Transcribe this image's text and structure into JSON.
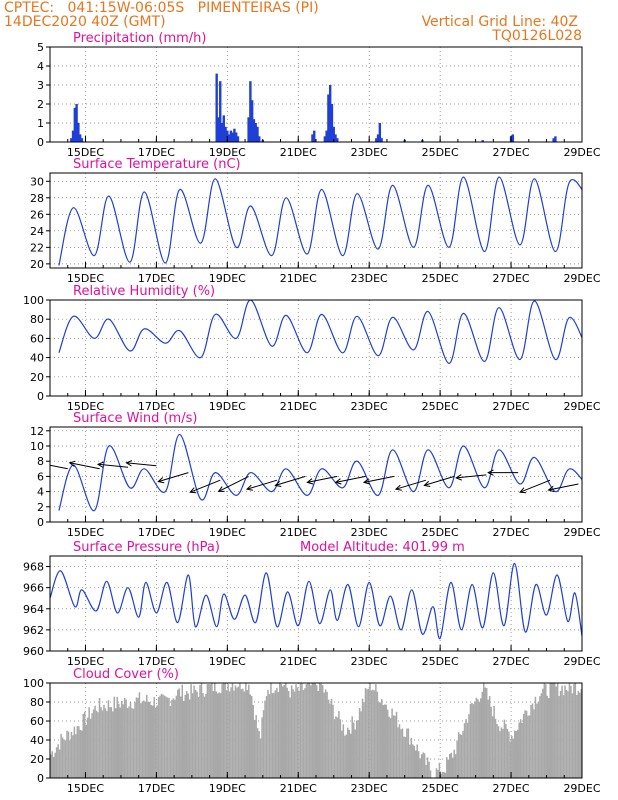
{
  "header": {
    "line1_left": "CPTEC:   041:15W-06:05S   PIMENTEIRAS (PI)",
    "line2_left": "14DEC2020 40Z (GMT)",
    "line1_right": "Vertical Grid Line: 40Z",
    "line2_right": "TQ0126L028"
  },
  "colors": {
    "header": "#e8761e",
    "title": "#e0119b",
    "series": "#1f3fd6",
    "cloud": "#a8a8a8",
    "arrow": "#000000"
  },
  "x_axis": {
    "tick_labels": [
      "15DEC",
      "17DEC",
      "19DEC",
      "21DEC",
      "23DEC",
      "25DEC",
      "27DEC",
      "29DEC"
    ],
    "tick_days": [
      15,
      17,
      19,
      21,
      23,
      25,
      27,
      29
    ],
    "range_days": [
      14,
      29
    ]
  },
  "chart_data": [
    {
      "id": "precip",
      "type": "bar",
      "title": "Precipitation (mm/h)",
      "ylim": [
        0,
        5
      ],
      "yticks": [
        0,
        1,
        2,
        3,
        4,
        5
      ],
      "grid": true,
      "x_day": [
        14.6,
        14.65,
        14.7,
        14.75,
        14.8,
        14.85,
        14.9,
        18.7,
        18.75,
        18.8,
        18.85,
        18.9,
        18.95,
        19.0,
        19.05,
        19.1,
        19.15,
        19.2,
        19.25,
        19.3,
        19.6,
        19.65,
        19.7,
        19.75,
        19.8,
        19.85,
        19.9,
        20.0,
        21.4,
        21.45,
        21.75,
        21.8,
        21.85,
        21.9,
        21.95,
        22.0,
        22.05,
        22.1,
        23.2,
        23.25,
        23.3,
        23.35,
        24.0,
        24.5,
        26.2,
        27.0,
        27.05,
        28.2,
        28.25
      ],
      "values": [
        0.2,
        0.6,
        1.8,
        2.0,
        1.0,
        0.4,
        0.2,
        3.6,
        1.3,
        3.2,
        1.0,
        1.4,
        0.8,
        0.6,
        0.4,
        0.6,
        0.5,
        0.7,
        0.5,
        0.3,
        1.3,
        3.2,
        2.2,
        1.2,
        1.0,
        0.8,
        0.3,
        0.1,
        0.4,
        0.6,
        0.3,
        0.6,
        2.5,
        3.0,
        2.0,
        0.8,
        0.4,
        0.2,
        0.2,
        0.4,
        1.0,
        0.2,
        0.1,
        0.1,
        0.1,
        0.3,
        0.4,
        0.2,
        0.3
      ]
    },
    {
      "id": "temperature",
      "type": "line",
      "title": "Surface Temperature (nC)",
      "ylim": [
        19.5,
        31
      ],
      "yticks": [
        20,
        22,
        24,
        26,
        28,
        30
      ],
      "grid": true,
      "daily": [
        {
          "d": 14,
          "max": 26.8,
          "min": 19.8
        },
        {
          "d": 15,
          "max": 28.2,
          "min": 21.0
        },
        {
          "d": 16,
          "max": 28.7,
          "min": 20.2
        },
        {
          "d": 17,
          "max": 29.0,
          "min": 20.1
        },
        {
          "d": 18,
          "max": 30.3,
          "min": 22.5
        },
        {
          "d": 19,
          "max": 27.0,
          "min": 22.0
        },
        {
          "d": 20,
          "max": 28.0,
          "min": 21.0
        },
        {
          "d": 21,
          "max": 29.0,
          "min": 21.2
        },
        {
          "d": 22,
          "max": 28.5,
          "min": 21.0
        },
        {
          "d": 23,
          "max": 29.5,
          "min": 21.8
        },
        {
          "d": 24,
          "max": 29.5,
          "min": 22.0
        },
        {
          "d": 25,
          "max": 30.5,
          "min": 22.0
        },
        {
          "d": 26,
          "max": 30.5,
          "min": 21.5
        },
        {
          "d": 27,
          "max": 30.3,
          "min": 22.3
        },
        {
          "d": 28,
          "max": 30.0,
          "min": 21.5
        },
        {
          "d": 29,
          "max": 30.3,
          "min": 27.8
        }
      ]
    },
    {
      "id": "humidity",
      "type": "line",
      "title": "Relative Humidity (%)",
      "ylim": [
        0,
        100
      ],
      "yticks": [
        0,
        20,
        40,
        60,
        80,
        100
      ],
      "grid": true,
      "daily": [
        {
          "d": 14,
          "max": 83,
          "min": 45
        },
        {
          "d": 15,
          "max": 80,
          "min": 60
        },
        {
          "d": 16,
          "max": 70,
          "min": 47
        },
        {
          "d": 17,
          "max": 68,
          "min": 55
        },
        {
          "d": 18,
          "max": 85,
          "min": 40
        },
        {
          "d": 19,
          "max": 100,
          "min": 60
        },
        {
          "d": 20,
          "max": 84,
          "min": 52
        },
        {
          "d": 21,
          "max": 85,
          "min": 45
        },
        {
          "d": 22,
          "max": 83,
          "min": 45
        },
        {
          "d": 23,
          "max": 82,
          "min": 42
        },
        {
          "d": 24,
          "max": 88,
          "min": 48
        },
        {
          "d": 25,
          "max": 86,
          "min": 34
        },
        {
          "d": 26,
          "max": 92,
          "min": 36
        },
        {
          "d": 27,
          "max": 99,
          "min": 38
        },
        {
          "d": 28,
          "max": 82,
          "min": 38
        },
        {
          "d": 29,
          "max": 45,
          "min": 42
        }
      ]
    },
    {
      "id": "wind",
      "type": "line",
      "title": "Surface Wind (m/s)",
      "ylim": [
        0,
        12.5
      ],
      "yticks": [
        0,
        2,
        4,
        6,
        8,
        10,
        12
      ],
      "grid": true,
      "daily": [
        {
          "d": 14,
          "max": 7.5,
          "min": 1.5
        },
        {
          "d": 15,
          "max": 10.0,
          "min": 1.5
        },
        {
          "d": 16,
          "max": 7.0,
          "min": 4.5
        },
        {
          "d": 17,
          "max": 11.5,
          "min": 4.0
        },
        {
          "d": 18,
          "max": 6.5,
          "min": 3.0
        },
        {
          "d": 19,
          "max": 6.5,
          "min": 3.5
        },
        {
          "d": 20,
          "max": 7.0,
          "min": 4.0
        },
        {
          "d": 21,
          "max": 7.0,
          "min": 3.5
        },
        {
          "d": 22,
          "max": 8.0,
          "min": 4.5
        },
        {
          "d": 23,
          "max": 9.5,
          "min": 3.5
        },
        {
          "d": 24,
          "max": 9.5,
          "min": 4.0
        },
        {
          "d": 25,
          "max": 10.0,
          "min": 4.5
        },
        {
          "d": 26,
          "max": 9.5,
          "min": 4.5
        },
        {
          "d": 27,
          "max": 8.5,
          "min": 5.0
        },
        {
          "d": 28,
          "max": 7.0,
          "min": 4.0
        },
        {
          "d": 29,
          "max": 6.0,
          "min": 4.5
        }
      ],
      "vectors": [
        {
          "day": 14.5,
          "speed": 7.0,
          "dx": -1.0,
          "dy": 0.2
        },
        {
          "day": 15.4,
          "speed": 7.0,
          "dx": -1.0,
          "dy": 0.2
        },
        {
          "day": 16.2,
          "speed": 7.2,
          "dx": -1.0,
          "dy": 0.1
        },
        {
          "day": 17.0,
          "speed": 7.4,
          "dx": -1.0,
          "dy": 0.1
        },
        {
          "day": 17.9,
          "speed": 6.5,
          "dx": -1.0,
          "dy": -0.3
        },
        {
          "day": 18.8,
          "speed": 5.5,
          "dx": -1.0,
          "dy": -0.4
        },
        {
          "day": 19.6,
          "speed": 6.0,
          "dx": -1.0,
          "dy": -0.5
        },
        {
          "day": 20.4,
          "speed": 5.5,
          "dx": -1.0,
          "dy": -0.3
        },
        {
          "day": 21.2,
          "speed": 6.0,
          "dx": -1.0,
          "dy": -0.3
        },
        {
          "day": 22.1,
          "speed": 6.0,
          "dx": -1.0,
          "dy": -0.2
        },
        {
          "day": 22.9,
          "speed": 6.0,
          "dx": -1.0,
          "dy": -0.2
        },
        {
          "day": 23.7,
          "speed": 6.0,
          "dx": -1.0,
          "dy": -0.2
        },
        {
          "day": 24.6,
          "speed": 5.5,
          "dx": -1.0,
          "dy": -0.3
        },
        {
          "day": 25.4,
          "speed": 6.0,
          "dx": -1.0,
          "dy": -0.3
        },
        {
          "day": 26.3,
          "speed": 6.2,
          "dx": -1.0,
          "dy": -0.1
        },
        {
          "day": 27.2,
          "speed": 6.5,
          "dx": -1.0,
          "dy": 0.0
        },
        {
          "day": 28.1,
          "speed": 5.5,
          "dx": -1.0,
          "dy": -0.4
        },
        {
          "day": 28.9,
          "speed": 5.0,
          "dx": -1.0,
          "dy": -0.2
        }
      ]
    },
    {
      "id": "pressure",
      "type": "line",
      "title": "Surface Pressure (hPa)",
      "subtitle": "Model Altitude: 401.99 m",
      "ylim": [
        960,
        969
      ],
      "yticks": [
        960,
        962,
        964,
        966,
        968
      ],
      "grid": true,
      "semidiurnal": [
        {
          "t": 14.0,
          "v": 965.0
        },
        {
          "t": 14.3,
          "v": 967.6
        },
        {
          "t": 14.7,
          "v": 964.2
        },
        {
          "t": 14.9,
          "v": 965.8
        },
        {
          "t": 15.3,
          "v": 963.8
        },
        {
          "t": 15.6,
          "v": 966.6
        },
        {
          "t": 15.9,
          "v": 963.6
        },
        {
          "t": 16.2,
          "v": 966.0
        },
        {
          "t": 16.5,
          "v": 963.2
        },
        {
          "t": 16.7,
          "v": 966.5
        },
        {
          "t": 17.0,
          "v": 963.6
        },
        {
          "t": 17.3,
          "v": 966.5
        },
        {
          "t": 17.6,
          "v": 962.7
        },
        {
          "t": 17.9,
          "v": 967.2
        },
        {
          "t": 18.1,
          "v": 962.3
        },
        {
          "t": 18.4,
          "v": 965.3
        },
        {
          "t": 18.7,
          "v": 962.3
        },
        {
          "t": 18.9,
          "v": 965.4
        },
        {
          "t": 19.2,
          "v": 963.0
        },
        {
          "t": 19.5,
          "v": 965.3
        },
        {
          "t": 19.8,
          "v": 962.7
        },
        {
          "t": 20.1,
          "v": 967.4
        },
        {
          "t": 20.4,
          "v": 962.3
        },
        {
          "t": 20.7,
          "v": 965.6
        },
        {
          "t": 21.0,
          "v": 962.4
        },
        {
          "t": 21.3,
          "v": 966.6
        },
        {
          "t": 21.6,
          "v": 962.6
        },
        {
          "t": 21.9,
          "v": 965.8
        },
        {
          "t": 22.1,
          "v": 962.9
        },
        {
          "t": 22.4,
          "v": 966.3
        },
        {
          "t": 22.7,
          "v": 962.3
        },
        {
          "t": 23.0,
          "v": 966.5
        },
        {
          "t": 23.3,
          "v": 962.4
        },
        {
          "t": 23.6,
          "v": 965.2
        },
        {
          "t": 23.9,
          "v": 962.0
        },
        {
          "t": 24.2,
          "v": 965.8
        },
        {
          "t": 24.5,
          "v": 961.6
        },
        {
          "t": 24.8,
          "v": 964.2
        },
        {
          "t": 25.0,
          "v": 961.2
        },
        {
          "t": 25.3,
          "v": 966.5
        },
        {
          "t": 25.6,
          "v": 962.0
        },
        {
          "t": 25.9,
          "v": 966.3
        },
        {
          "t": 26.2,
          "v": 962.2
        },
        {
          "t": 26.5,
          "v": 967.4
        },
        {
          "t": 26.8,
          "v": 962.4
        },
        {
          "t": 27.1,
          "v": 968.3
        },
        {
          "t": 27.4,
          "v": 961.8
        },
        {
          "t": 27.7,
          "v": 966.3
        },
        {
          "t": 28.0,
          "v": 963.4
        },
        {
          "t": 28.3,
          "v": 967.2
        },
        {
          "t": 28.6,
          "v": 962.8
        },
        {
          "t": 28.8,
          "v": 965.5
        },
        {
          "t": 29.0,
          "v": 961.4
        }
      ]
    },
    {
      "id": "cloud",
      "type": "area",
      "title": "Cloud Cover (%)",
      "ylim": [
        0,
        100
      ],
      "yticks": [
        0,
        20,
        40,
        60,
        80,
        100
      ],
      "grid": true,
      "envelope": [
        {
          "t": 14.0,
          "v": 25
        },
        {
          "t": 14.3,
          "v": 40
        },
        {
          "t": 14.8,
          "v": 55
        },
        {
          "t": 15.3,
          "v": 75
        },
        {
          "t": 15.8,
          "v": 78
        },
        {
          "t": 16.5,
          "v": 82
        },
        {
          "t": 17.2,
          "v": 80
        },
        {
          "t": 17.6,
          "v": 90
        },
        {
          "t": 18.0,
          "v": 90
        },
        {
          "t": 18.4,
          "v": 95
        },
        {
          "t": 18.8,
          "v": 98
        },
        {
          "t": 19.2,
          "v": 100
        },
        {
          "t": 19.6,
          "v": 100
        },
        {
          "t": 19.9,
          "v": 40
        },
        {
          "t": 20.1,
          "v": 95
        },
        {
          "t": 20.5,
          "v": 100
        },
        {
          "t": 20.8,
          "v": 90
        },
        {
          "t": 21.2,
          "v": 95
        },
        {
          "t": 21.6,
          "v": 100
        },
        {
          "t": 22.0,
          "v": 70
        },
        {
          "t": 22.3,
          "v": 50
        },
        {
          "t": 22.6,
          "v": 60
        },
        {
          "t": 23.0,
          "v": 100
        },
        {
          "t": 23.4,
          "v": 80
        },
        {
          "t": 23.8,
          "v": 60
        },
        {
          "t": 24.2,
          "v": 40
        },
        {
          "t": 24.5,
          "v": 20
        },
        {
          "t": 24.8,
          "v": 5
        },
        {
          "t": 25.1,
          "v": 10
        },
        {
          "t": 25.4,
          "v": 30
        },
        {
          "t": 25.8,
          "v": 70
        },
        {
          "t": 26.2,
          "v": 95
        },
        {
          "t": 26.6,
          "v": 60
        },
        {
          "t": 27.0,
          "v": 45
        },
        {
          "t": 27.4,
          "v": 70
        },
        {
          "t": 27.8,
          "v": 90
        },
        {
          "t": 28.2,
          "v": 95
        },
        {
          "t": 28.6,
          "v": 95
        },
        {
          "t": 29.0,
          "v": 97
        }
      ]
    }
  ]
}
